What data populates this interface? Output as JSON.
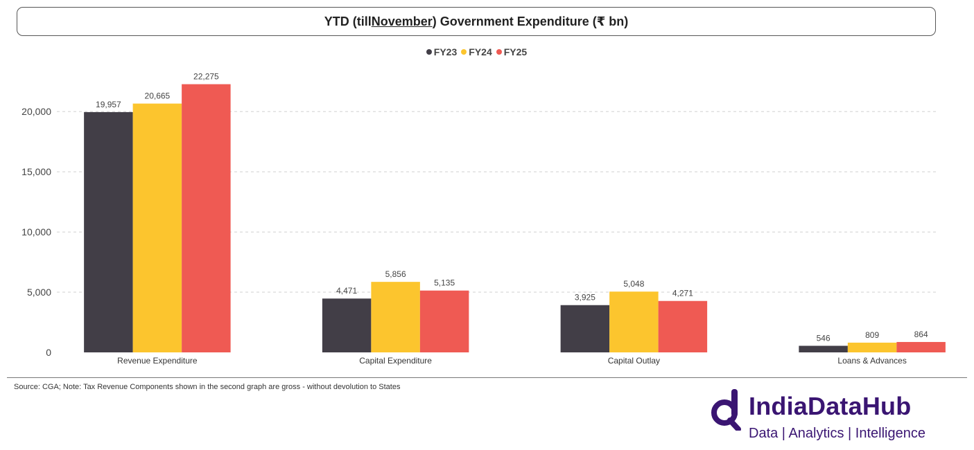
{
  "title": {
    "prefix": "YTD (till ",
    "underlined": "November",
    "suffix": ") Government Expenditure (₹ bn)"
  },
  "colors": {
    "FY23": "#423e47",
    "FY24": "#fcc52e",
    "FY25": "#ef5a53",
    "grid": "#cfcfcf",
    "text": "#444444"
  },
  "chart_data": {
    "type": "bar",
    "title": "YTD (till November) Government Expenditure (₹ bn)",
    "categories": [
      "Revenue Expenditure",
      "Capital Expenditure",
      "Capital Outlay",
      "Loans & Advances"
    ],
    "series": [
      {
        "name": "FY23",
        "values": [
          19957,
          4471,
          3925,
          546
        ],
        "labels": [
          "19,957",
          "4,471",
          "3,925",
          "546"
        ]
      },
      {
        "name": "FY24",
        "values": [
          20665,
          5856,
          5048,
          809
        ],
        "labels": [
          "20,665",
          "5,856",
          "5,048",
          "809"
        ]
      },
      {
        "name": "FY25",
        "values": [
          22275,
          5135,
          4271,
          864
        ],
        "labels": [
          "22,275",
          "5,135",
          "4,271",
          "864"
        ]
      }
    ],
    "y_ticks": [
      0,
      5000,
      10000,
      15000,
      20000
    ],
    "y_tick_labels": [
      "0",
      "5,000",
      "10,000",
      "15,000",
      "20,000"
    ],
    "ylim": [
      0,
      23000
    ],
    "grid": true,
    "legend_position": "top-center"
  },
  "footer": {
    "source": "Source: CGA; Note: Tax Revenue Components shown in the second graph are gross - without devolution to States"
  },
  "logo": {
    "name": "IndiaDataHub",
    "tagline": "Data | Analytics | Intelligence"
  }
}
